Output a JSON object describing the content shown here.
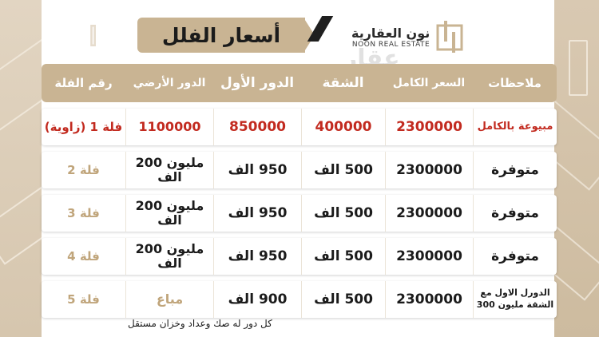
{
  "title": "أسعار الفلل",
  "logo": {
    "arabic": "نون العقارية",
    "english": "NOON REAL ESTATE"
  },
  "watermark": {
    "text": "عقار",
    "url": "sa.aqar.fm"
  },
  "table": {
    "headers": {
      "notes": "ملاحظات",
      "total": "السعر الكامل",
      "apartment": "الشقة",
      "first_floor": "الدور الأول",
      "ground_floor": "الدور الأرضي",
      "villa": "رقم الفلة"
    },
    "rows": [
      {
        "notes": "مبيوعة بالكامل",
        "total": "2300000",
        "apartment": "400000",
        "first_floor": "850000",
        "ground_floor": "1100000",
        "villa": "فلة 1 (زاوية)"
      },
      {
        "notes": "متوفرة",
        "total": "2300000",
        "apartment": "500 الف",
        "first_floor": "950 الف",
        "ground_floor": "مليون 200 الف",
        "villa": "فلة 2"
      },
      {
        "notes": "متوفرة",
        "total": "2300000",
        "apartment": "500 الف",
        "first_floor": "950 الف",
        "ground_floor": "مليون 200 الف",
        "villa": "فلة 3"
      },
      {
        "notes": "متوفرة",
        "total": "2300000",
        "apartment": "500 الف",
        "first_floor": "950 الف",
        "ground_floor": "مليون 200 الف",
        "villa": "فلة 4"
      },
      {
        "notes": "الدورل الاول مع الشقة مليون 300",
        "total": "2300000",
        "apartment": "500 الف",
        "first_floor": "900 الف",
        "ground_floor": "مباع",
        "villa": "فلة 5"
      }
    ]
  },
  "footer_note": "كل دور له صك وعداد وخزان مستقل",
  "colors": {
    "accent": "#c9b493",
    "sold_red": "#c22a1f",
    "villa_gold": "#c0a57b"
  }
}
